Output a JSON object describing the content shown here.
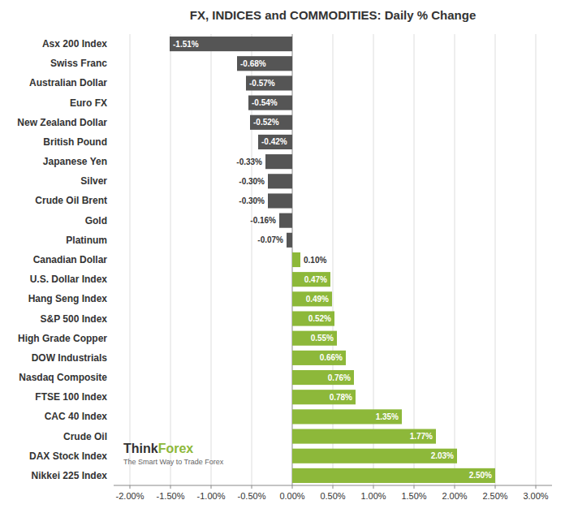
{
  "chart_data": {
    "type": "bar",
    "orientation": "horizontal",
    "title": "FX, INDICES and COMMODITIES: Daily % Change",
    "categories": [
      "Asx 200 Index",
      "Swiss Franc",
      "Australian Dollar",
      "Euro FX",
      "New Zealand Dollar",
      "British Pound",
      "Japanese Yen",
      "Silver",
      "Crude Oil Brent",
      "Gold",
      "Platinum",
      "Canadian Dollar",
      "U.S. Dollar Index",
      "Hang Seng Index",
      "S&P 500 Index",
      "High Grade Copper",
      "DOW Industrials",
      "Nasdaq Composite",
      "FTSE 100 Index",
      "CAC 40 Index",
      "Crude Oil",
      "DAX Stock Index",
      "Nikkei 225 Index"
    ],
    "values": [
      -1.51,
      -0.68,
      -0.57,
      -0.54,
      -0.52,
      -0.42,
      -0.33,
      -0.3,
      -0.3,
      -0.16,
      -0.07,
      0.1,
      0.47,
      0.49,
      0.52,
      0.55,
      0.66,
      0.76,
      0.78,
      1.35,
      1.77,
      2.03,
      2.5
    ],
    "value_labels": [
      "-1.51%",
      "-0.68%",
      "-0.57%",
      "-0.54%",
      "-0.52%",
      "-0.42%",
      "-0.33%",
      "-0.30%",
      "-0.30%",
      "-0.16%",
      "-0.07%",
      "0.10%",
      "0.47%",
      "0.49%",
      "0.52%",
      "0.55%",
      "0.66%",
      "0.76%",
      "0.78%",
      "1.35%",
      "1.77%",
      "2.03%",
      "2.50%"
    ],
    "colors": [
      "#555555",
      "#555555",
      "#555555",
      "#555555",
      "#555555",
      "#555555",
      "#555555",
      "#555555",
      "#555555",
      "#555555",
      "#555555",
      "#8db83a",
      "#8db83a",
      "#8db83a",
      "#8db83a",
      "#8db83a",
      "#8db83a",
      "#8db83a",
      "#8db83a",
      "#8db83a",
      "#8db83a",
      "#8db83a",
      "#8db83a"
    ],
    "xlim": [
      -2.2,
      3.2
    ],
    "xticks": [
      {
        "value": -2.0,
        "label": "-2.00%"
      },
      {
        "value": -1.5,
        "label": "-1.50%"
      },
      {
        "value": -1.0,
        "label": "-1.00%"
      },
      {
        "value": -0.5,
        "label": "-0.50%"
      },
      {
        "value": 0.0,
        "label": "0.00%"
      },
      {
        "value": 0.5,
        "label": "0.50%"
      },
      {
        "value": 1.0,
        "label": "1.00%"
      },
      {
        "value": 1.5,
        "label": "1.50%"
      },
      {
        "value": 2.0,
        "label": "2.00%"
      },
      {
        "value": 2.5,
        "label": "2.50%"
      },
      {
        "value": 3.0,
        "label": "3.00%"
      }
    ],
    "grid": true,
    "data_labels": true,
    "annotations": [
      "Think",
      "Forex",
      "The Smart Way to Trade Forex"
    ]
  }
}
